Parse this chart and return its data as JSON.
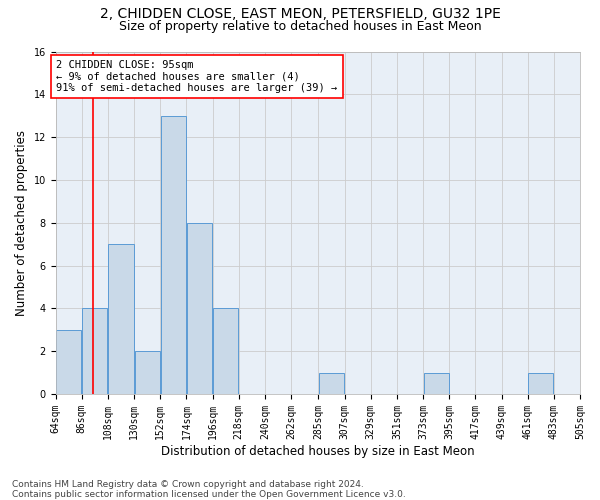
{
  "title1": "2, CHIDDEN CLOSE, EAST MEON, PETERSFIELD, GU32 1PE",
  "title2": "Size of property relative to detached houses in East Meon",
  "xlabel": "Distribution of detached houses by size in East Meon",
  "ylabel": "Number of detached properties",
  "footnote": "Contains HM Land Registry data © Crown copyright and database right 2024.\nContains public sector information licensed under the Open Government Licence v3.0.",
  "bin_labels": [
    "64sqm",
    "86sqm",
    "108sqm",
    "130sqm",
    "152sqm",
    "174sqm",
    "196sqm",
    "218sqm",
    "240sqm",
    "262sqm",
    "285sqm",
    "307sqm",
    "329sqm",
    "351sqm",
    "373sqm",
    "395sqm",
    "417sqm",
    "439sqm",
    "461sqm",
    "483sqm",
    "505sqm"
  ],
  "bin_edges": [
    64,
    86,
    108,
    130,
    152,
    174,
    196,
    218,
    240,
    262,
    285,
    307,
    329,
    351,
    373,
    395,
    417,
    439,
    461,
    483,
    505
  ],
  "counts": [
    3,
    4,
    7,
    2,
    13,
    8,
    4,
    0,
    0,
    0,
    1,
    0,
    0,
    0,
    1,
    0,
    0,
    0,
    1,
    0
  ],
  "bar_color": "#c9d9e8",
  "bar_edge_color": "#5b9bd5",
  "annotation_text": "2 CHIDDEN CLOSE: 95sqm\n← 9% of detached houses are smaller (4)\n91% of semi-detached houses are larger (39) →",
  "annotation_box_color": "white",
  "annotation_box_edge": "red",
  "red_line_x": 95,
  "ylim": [
    0,
    16
  ],
  "yticks": [
    0,
    2,
    4,
    6,
    8,
    10,
    12,
    14,
    16
  ],
  "grid_color": "#cccccc",
  "title1_fontsize": 10,
  "title2_fontsize": 9,
  "xlabel_fontsize": 8.5,
  "ylabel_fontsize": 8.5,
  "annot_fontsize": 7.5,
  "tick_fontsize": 7,
  "footnote_fontsize": 6.5
}
